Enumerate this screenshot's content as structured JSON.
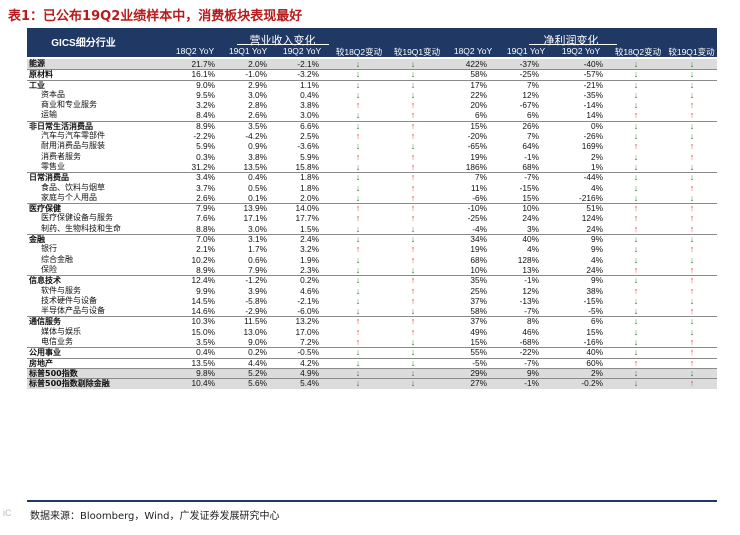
{
  "title": "表1：已公布19Q2业绩样本中，消费板块表现最好",
  "header": {
    "gics": "GICS细分行业",
    "revenue_group": "营业收入变化",
    "profit_group": "净利润变化",
    "columns": [
      "18Q2 YoY",
      "19Q1 YoY",
      "19Q2 YoY",
      "较18Q2变动",
      "较19Q1变动"
    ]
  },
  "rows": [
    {
      "label": "能源",
      "level": 0,
      "sec": true,
      "bg": true,
      "rev": [
        "21.7%",
        "2.0%",
        "-2.1%"
      ],
      "rev_arrows": [
        "down",
        "down"
      ],
      "prof": [
        "422%",
        "-37%",
        "-40%"
      ],
      "prof_arrows": [
        "down",
        "down"
      ]
    },
    {
      "label": "原材料",
      "level": 0,
      "sec": true,
      "bg": false,
      "rev": [
        "16.1%",
        "-1.0%",
        "-3.2%"
      ],
      "rev_arrows": [
        "down",
        "down"
      ],
      "prof": [
        "58%",
        "-25%",
        "-57%"
      ],
      "prof_arrows": [
        "down",
        "down"
      ]
    },
    {
      "label": "工业",
      "level": 0,
      "sec": true,
      "bg": false,
      "rev": [
        "9.0%",
        "2.9%",
        "1.1%"
      ],
      "rev_arrows": [
        "down",
        "down"
      ],
      "prof": [
        "17%",
        "7%",
        "-21%"
      ],
      "prof_arrows": [
        "down",
        "down"
      ]
    },
    {
      "label": "资本品",
      "level": 1,
      "sec": false,
      "bg": false,
      "rev": [
        "9.5%",
        "3.0%",
        "0.4%"
      ],
      "rev_arrows": [
        "down",
        "down"
      ],
      "prof": [
        "22%",
        "12%",
        "-35%"
      ],
      "prof_arrows": [
        "down",
        "down"
      ]
    },
    {
      "label": "商业和专业服务",
      "level": 1,
      "sec": false,
      "bg": false,
      "rev": [
        "3.2%",
        "2.8%",
        "3.8%"
      ],
      "rev_arrows": [
        "up",
        "up"
      ],
      "prof": [
        "20%",
        "-67%",
        "-14%"
      ],
      "prof_arrows": [
        "down",
        "up"
      ]
    },
    {
      "label": "运输",
      "level": 1,
      "sec": false,
      "bg": false,
      "rev": [
        "8.4%",
        "2.6%",
        "3.0%"
      ],
      "rev_arrows": [
        "down",
        "up"
      ],
      "prof": [
        "6%",
        "6%",
        "14%"
      ],
      "prof_arrows": [
        "up",
        "up"
      ]
    },
    {
      "label": "非日常生活消费品",
      "level": 0,
      "sec": true,
      "bg": false,
      "rev": [
        "8.9%",
        "3.5%",
        "6.6%"
      ],
      "rev_arrows": [
        "down",
        "up"
      ],
      "prof": [
        "15%",
        "26%",
        "0%"
      ],
      "prof_arrows": [
        "down",
        "down"
      ]
    },
    {
      "label": "汽车与汽车零部件",
      "level": 1,
      "sec": false,
      "bg": false,
      "rev": [
        "-2.2%",
        "-4.2%",
        "2.5%"
      ],
      "rev_arrows": [
        "up",
        "up"
      ],
      "prof": [
        "-20%",
        "7%",
        "-26%"
      ],
      "prof_arrows": [
        "down",
        "down"
      ]
    },
    {
      "label": "耐用消费品与服装",
      "level": 1,
      "sec": false,
      "bg": false,
      "rev": [
        "5.9%",
        "0.9%",
        "-3.6%"
      ],
      "rev_arrows": [
        "down",
        "down"
      ],
      "prof": [
        "-65%",
        "64%",
        "169%"
      ],
      "prof_arrows": [
        "up",
        "up"
      ]
    },
    {
      "label": "消费者服务",
      "level": 1,
      "sec": false,
      "bg": false,
      "rev": [
        "0.3%",
        "3.8%",
        "5.9%"
      ],
      "rev_arrows": [
        "up",
        "up"
      ],
      "prof": [
        "19%",
        "-1%",
        "2%"
      ],
      "prof_arrows": [
        "down",
        "up"
      ]
    },
    {
      "label": "零售业",
      "level": 1,
      "sec": false,
      "bg": false,
      "rev": [
        "31.2%",
        "13.5%",
        "15.8%"
      ],
      "rev_arrows": [
        "down",
        "up"
      ],
      "prof": [
        "186%",
        "68%",
        "1%"
      ],
      "prof_arrows": [
        "down",
        "down"
      ]
    },
    {
      "label": "日常消费品",
      "level": 0,
      "sec": true,
      "bg": false,
      "rev": [
        "3.4%",
        "0.4%",
        "1.8%"
      ],
      "rev_arrows": [
        "down",
        "up"
      ],
      "prof": [
        "7%",
        "-7%",
        "-44%"
      ],
      "prof_arrows": [
        "down",
        "down"
      ]
    },
    {
      "label": "食品、饮料与烟草",
      "level": 1,
      "sec": false,
      "bg": false,
      "rev": [
        "3.7%",
        "0.5%",
        "1.8%"
      ],
      "rev_arrows": [
        "down",
        "up"
      ],
      "prof": [
        "11%",
        "-15%",
        "4%"
      ],
      "prof_arrows": [
        "down",
        "up"
      ]
    },
    {
      "label": "家庭与个人用品",
      "level": 1,
      "sec": false,
      "bg": false,
      "rev": [
        "2.6%",
        "0.1%",
        "2.0%"
      ],
      "rev_arrows": [
        "down",
        "up"
      ],
      "prof": [
        "-6%",
        "15%",
        "-216%"
      ],
      "prof_arrows": [
        "down",
        "down"
      ]
    },
    {
      "label": "医疗保健",
      "level": 0,
      "sec": true,
      "bg": false,
      "rev": [
        "7.9%",
        "13.9%",
        "14.0%"
      ],
      "rev_arrows": [
        "up",
        "up"
      ],
      "prof": [
        "-10%",
        "10%",
        "51%"
      ],
      "prof_arrows": [
        "up",
        "up"
      ]
    },
    {
      "label": "医疗保健设备与服务",
      "level": 1,
      "sec": false,
      "bg": false,
      "rev": [
        "7.6%",
        "17.1%",
        "17.7%"
      ],
      "rev_arrows": [
        "up",
        "up"
      ],
      "prof": [
        "-25%",
        "24%",
        "124%"
      ],
      "prof_arrows": [
        "up",
        "up"
      ]
    },
    {
      "label": "制药、生物科技和生命",
      "level": 1,
      "sec": false,
      "bg": false,
      "rev": [
        "8.8%",
        "3.0%",
        "1.5%"
      ],
      "rev_arrows": [
        "down",
        "down"
      ],
      "prof": [
        "-4%",
        "3%",
        "24%"
      ],
      "prof_arrows": [
        "up",
        "up"
      ]
    },
    {
      "label": "金融",
      "level": 0,
      "sec": true,
      "bg": false,
      "rev": [
        "7.0%",
        "3.1%",
        "2.4%"
      ],
      "rev_arrows": [
        "down",
        "down"
      ],
      "prof": [
        "34%",
        "40%",
        "9%"
      ],
      "prof_arrows": [
        "down",
        "down"
      ]
    },
    {
      "label": "银行",
      "level": 1,
      "sec": false,
      "bg": false,
      "rev": [
        "2.1%",
        "1.7%",
        "3.2%"
      ],
      "rev_arrows": [
        "up",
        "up"
      ],
      "prof": [
        "19%",
        "4%",
        "9%"
      ],
      "prof_arrows": [
        "down",
        "up"
      ]
    },
    {
      "label": "综合金融",
      "level": 1,
      "sec": false,
      "bg": false,
      "rev": [
        "10.2%",
        "0.6%",
        "1.9%"
      ],
      "rev_arrows": [
        "down",
        "up"
      ],
      "prof": [
        "68%",
        "128%",
        "4%"
      ],
      "prof_arrows": [
        "down",
        "down"
      ]
    },
    {
      "label": "保险",
      "level": 1,
      "sec": false,
      "bg": false,
      "rev": [
        "8.9%",
        "7.9%",
        "2.3%"
      ],
      "rev_arrows": [
        "down",
        "down"
      ],
      "prof": [
        "10%",
        "13%",
        "24%"
      ],
      "prof_arrows": [
        "up",
        "up"
      ]
    },
    {
      "label": "信息技术",
      "level": 0,
      "sec": true,
      "bg": false,
      "rev": [
        "12.4%",
        "-1.2%",
        "0.2%"
      ],
      "rev_arrows": [
        "down",
        "up"
      ],
      "prof": [
        "35%",
        "-1%",
        "9%"
      ],
      "prof_arrows": [
        "down",
        "up"
      ]
    },
    {
      "label": "软件与服务",
      "level": 1,
      "sec": false,
      "bg": false,
      "rev": [
        "9.9%",
        "3.9%",
        "4.6%"
      ],
      "rev_arrows": [
        "down",
        "up"
      ],
      "prof": [
        "25%",
        "12%",
        "38%"
      ],
      "prof_arrows": [
        "up",
        "up"
      ]
    },
    {
      "label": "技术硬件与设备",
      "level": 1,
      "sec": false,
      "bg": false,
      "rev": [
        "14.5%",
        "-5.8%",
        "-2.1%"
      ],
      "rev_arrows": [
        "down",
        "up"
      ],
      "prof": [
        "37%",
        "-13%",
        "-15%"
      ],
      "prof_arrows": [
        "down",
        "down"
      ]
    },
    {
      "label": "半导体产品与设备",
      "level": 1,
      "sec": false,
      "bg": false,
      "rev": [
        "14.6%",
        "-2.9%",
        "-6.0%"
      ],
      "rev_arrows": [
        "down",
        "down"
      ],
      "prof": [
        "58%",
        "-7%",
        "-5%"
      ],
      "prof_arrows": [
        "down",
        "up"
      ]
    },
    {
      "label": "通信服务",
      "level": 0,
      "sec": true,
      "bg": false,
      "rev": [
        "10.3%",
        "11.5%",
        "13.2%"
      ],
      "rev_arrows": [
        "up",
        "up"
      ],
      "prof": [
        "37%",
        "8%",
        "6%"
      ],
      "prof_arrows": [
        "down",
        "down"
      ]
    },
    {
      "label": "媒体与娱乐",
      "level": 1,
      "sec": false,
      "bg": false,
      "rev": [
        "15.0%",
        "13.0%",
        "17.0%"
      ],
      "rev_arrows": [
        "up",
        "up"
      ],
      "prof": [
        "49%",
        "46%",
        "15%"
      ],
      "prof_arrows": [
        "down",
        "down"
      ]
    },
    {
      "label": "电信业务",
      "level": 1,
      "sec": false,
      "bg": false,
      "rev": [
        "3.5%",
        "9.0%",
        "7.2%"
      ],
      "rev_arrows": [
        "up",
        "down"
      ],
      "prof": [
        "15%",
        "-68%",
        "-16%"
      ],
      "prof_arrows": [
        "down",
        "up"
      ]
    },
    {
      "label": "公用事业",
      "level": 0,
      "sec": true,
      "bg": false,
      "rev": [
        "0.4%",
        "0.2%",
        "-0.5%"
      ],
      "rev_arrows": [
        "down",
        "down"
      ],
      "prof": [
        "55%",
        "-22%",
        "40%"
      ],
      "prof_arrows": [
        "down",
        "up"
      ]
    },
    {
      "label": "房地产",
      "level": 0,
      "sec": true,
      "bg": false,
      "rev": [
        "13.5%",
        "4.4%",
        "4.2%"
      ],
      "rev_arrows": [
        "down",
        "down"
      ],
      "prof": [
        "-5%",
        "-7%",
        "60%"
      ],
      "prof_arrows": [
        "up",
        "up"
      ]
    },
    {
      "label": "标普500指数",
      "level": 0,
      "sec": true,
      "bg": true,
      "rev": [
        "9.8%",
        "5.2%",
        "4.9%"
      ],
      "rev_arrows": [
        "down",
        "down"
      ],
      "prof": [
        "29%",
        "9%",
        "2%"
      ],
      "prof_arrows": [
        "down",
        "down"
      ]
    },
    {
      "label": "标普500指数剔除金融",
      "level": 0,
      "sec": true,
      "bg": true,
      "rev": [
        "10.4%",
        "5.6%",
        "5.4%"
      ],
      "rev_arrows": [
        "down",
        "down"
      ],
      "prof": [
        "27%",
        "-1%",
        "-0.2%"
      ],
      "prof_arrows": [
        "down",
        "up"
      ]
    }
  ],
  "source": "数据来源：Bloomberg，Wind，广发证券发展研究中心",
  "watermark": "iC",
  "colors": {
    "header_bg": "#1f3864",
    "title": "#b71c1c",
    "up": "#e53935",
    "down": "#2e7d32"
  }
}
